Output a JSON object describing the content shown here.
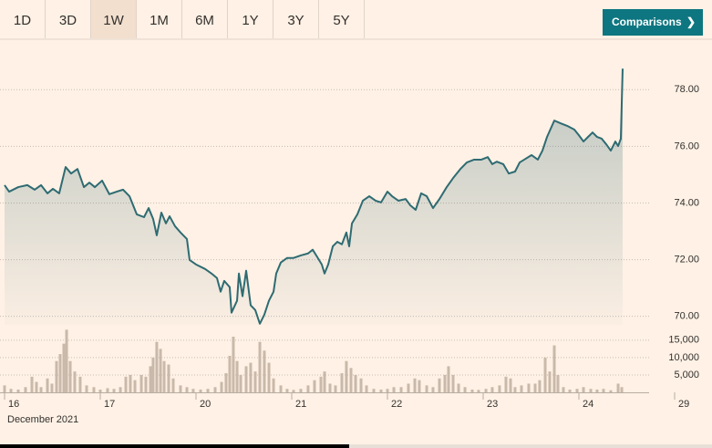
{
  "range_buttons": [
    "1D",
    "3D",
    "1W",
    "1M",
    "6M",
    "1Y",
    "3Y",
    "5Y"
  ],
  "selected_range": 2,
  "comparisons_button": "Comparisons",
  "chart_data": [
    {
      "type": "line",
      "color": "#2e6b72",
      "x": [
        0,
        0.048,
        0.143,
        0.238,
        0.314,
        0.381,
        0.448,
        0.505,
        0.571,
        0.638,
        0.695,
        0.762,
        0.829,
        0.886,
        0.943,
        1.019,
        1.095,
        1.171,
        1.238,
        1.305,
        1.381,
        1.457,
        1.505,
        1.552,
        1.59,
        1.638,
        1.686,
        1.724,
        1.781,
        1.838,
        1.905,
        1.933,
        2.0,
        2.095,
        2.162,
        2.219,
        2.257,
        2.295,
        2.352,
        2.371,
        2.429,
        2.448,
        2.486,
        2.524,
        2.571,
        2.619,
        2.667,
        2.714,
        2.762,
        2.81,
        2.838,
        2.886,
        2.952,
        3.019,
        3.095,
        3.171,
        3.219,
        3.267,
        3.314,
        3.343,
        3.381,
        3.429,
        3.476,
        3.524,
        3.571,
        3.6,
        3.629,
        3.686,
        3.743,
        3.81,
        3.876,
        3.933,
        4.0,
        4.048,
        4.114,
        4.19,
        4.238,
        4.295,
        4.352,
        4.41,
        4.476,
        4.543,
        4.619,
        4.686,
        4.762,
        4.829,
        4.905,
        4.981,
        5.048,
        5.095,
        5.143,
        5.21,
        5.267,
        5.333,
        5.381,
        5.429,
        5.505,
        5.571,
        5.619,
        5.667,
        5.743,
        5.81,
        5.886,
        5.952,
        6.0,
        6.048,
        6.095,
        6.143,
        6.19,
        6.238,
        6.286,
        6.333,
        6.381,
        6.41,
        6.438,
        6.457
      ],
      "values": [
        74.63,
        74.4,
        74.56,
        74.63,
        74.47,
        74.63,
        74.34,
        74.5,
        74.34,
        75.27,
        75.04,
        75.2,
        74.56,
        74.72,
        74.56,
        74.79,
        74.31,
        74.4,
        74.47,
        74.24,
        73.6,
        73.5,
        73.82,
        73.44,
        72.86,
        73.66,
        73.28,
        73.53,
        73.18,
        72.96,
        72.73,
        71.99,
        71.83,
        71.67,
        71.51,
        71.35,
        70.87,
        71.25,
        71.03,
        70.13,
        70.55,
        71.51,
        70.71,
        71.61,
        70.39,
        70.22,
        69.74,
        70.06,
        70.55,
        70.87,
        71.51,
        71.9,
        72.06,
        72.06,
        72.15,
        72.22,
        72.35,
        72.09,
        71.83,
        71.51,
        71.83,
        72.47,
        72.63,
        72.54,
        72.96,
        72.47,
        73.28,
        73.6,
        74.08,
        74.24,
        74.08,
        74.02,
        74.4,
        74.24,
        74.08,
        74.14,
        73.92,
        73.76,
        74.34,
        74.24,
        73.82,
        74.14,
        74.56,
        74.88,
        75.2,
        75.43,
        75.53,
        75.53,
        75.62,
        75.37,
        75.46,
        75.37,
        75.04,
        75.11,
        75.43,
        75.53,
        75.69,
        75.53,
        75.85,
        76.33,
        76.91,
        76.81,
        76.71,
        76.59,
        76.39,
        76.17,
        76.33,
        76.49,
        76.33,
        76.27,
        76.07,
        75.85,
        76.17,
        76.01,
        76.27,
        78.74
      ],
      "xlim": [
        0,
        7
      ],
      "ylim": [
        69.7,
        79.2
      ],
      "yticks": [
        {
          "value": 70,
          "label": "70.00"
        },
        {
          "value": 72,
          "label": "72.00"
        },
        {
          "value": 74,
          "label": "74.00"
        },
        {
          "value": 76,
          "label": "76.00"
        },
        {
          "value": 78,
          "label": "78.00"
        }
      ],
      "grid": true
    },
    {
      "type": "bar",
      "color": "#c9b9aa",
      "x": [
        0,
        0.067,
        0.143,
        0.219,
        0.286,
        0.333,
        0.381,
        0.448,
        0.495,
        0.543,
        0.581,
        0.619,
        0.648,
        0.686,
        0.733,
        0.79,
        0.857,
        0.933,
        1.0,
        1.076,
        1.143,
        1.21,
        1.267,
        1.314,
        1.362,
        1.429,
        1.476,
        1.524,
        1.552,
        1.59,
        1.629,
        1.667,
        1.714,
        1.762,
        1.838,
        1.905,
        1.971,
        2.048,
        2.124,
        2.2,
        2.267,
        2.314,
        2.352,
        2.39,
        2.429,
        2.467,
        2.524,
        2.571,
        2.619,
        2.667,
        2.714,
        2.762,
        2.81,
        2.886,
        2.952,
        3.019,
        3.095,
        3.171,
        3.238,
        3.305,
        3.343,
        3.4,
        3.457,
        3.524,
        3.571,
        3.619,
        3.667,
        3.724,
        3.781,
        3.857,
        3.933,
        4.0,
        4.067,
        4.143,
        4.219,
        4.286,
        4.333,
        4.41,
        4.476,
        4.543,
        4.6,
        4.638,
        4.686,
        4.743,
        4.81,
        4.886,
        4.952,
        5.029,
        5.095,
        5.171,
        5.238,
        5.286,
        5.333,
        5.4,
        5.476,
        5.543,
        5.59,
        5.648,
        5.695,
        5.743,
        5.781,
        5.838,
        5.905,
        5.981,
        6.048,
        6.124,
        6.19,
        6.257,
        6.333,
        6.41,
        6.448
      ],
      "values": [
        2000,
        1000,
        800,
        1500,
        4500,
        3000,
        1500,
        4000,
        2500,
        9000,
        11000,
        14000,
        18000,
        9000,
        6000,
        4500,
        2000,
        1500,
        800,
        1200,
        1000,
        1500,
        4500,
        5000,
        3500,
        5000,
        4500,
        7500,
        10000,
        14500,
        12500,
        9000,
        8000,
        4000,
        2000,
        1500,
        1000,
        800,
        1000,
        1500,
        3000,
        5500,
        10500,
        16000,
        9000,
        5000,
        7500,
        8500,
        6000,
        14500,
        12000,
        8500,
        4000,
        2000,
        1000,
        700,
        1000,
        2000,
        3500,
        4500,
        6000,
        2500,
        2000,
        5500,
        9000,
        7000,
        5000,
        4000,
        2000,
        1000,
        800,
        1000,
        1500,
        1500,
        2500,
        4000,
        3500,
        2000,
        1500,
        4000,
        5000,
        7500,
        5000,
        2500,
        1500,
        800,
        700,
        1000,
        1500,
        2000,
        4500,
        4000,
        1500,
        2000,
        2500,
        2500,
        3500,
        10000,
        6000,
        13500,
        5000,
        1500,
        800,
        1000,
        1500,
        1000,
        800,
        1000,
        600,
        2500,
        1500
      ],
      "xlim": [
        0,
        7
      ],
      "xticks": [
        {
          "value": 0,
          "label": "16"
        },
        {
          "value": 1,
          "label": "17"
        },
        {
          "value": 2,
          "label": "20"
        },
        {
          "value": 3,
          "label": "21"
        },
        {
          "value": 4,
          "label": "22"
        },
        {
          "value": 5,
          "label": "23"
        },
        {
          "value": 6,
          "label": "24"
        },
        {
          "value": 7,
          "label": "29"
        }
      ],
      "xlabel": "December 2021",
      "ylim": [
        0,
        16000
      ],
      "yticks": [
        {
          "value": 5000,
          "label": "5,000"
        },
        {
          "value": 10000,
          "label": "10,000"
        },
        {
          "value": 15000,
          "label": "15,000"
        }
      ],
      "grid": true
    }
  ]
}
